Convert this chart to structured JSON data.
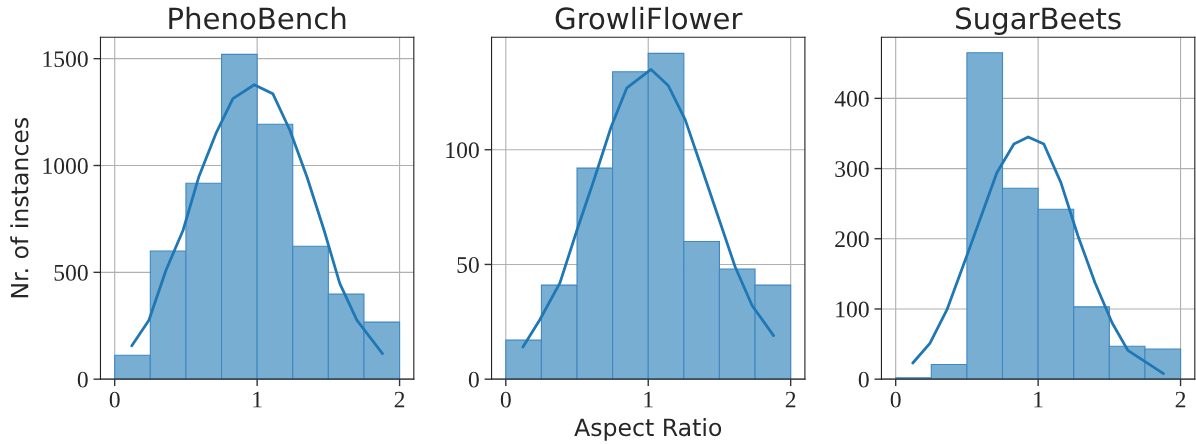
{
  "chart_data": [
    {
      "type": "histogram",
      "title": "PhenoBench",
      "ylabel": "Nr. of instances",
      "bins": [
        0,
        0.25,
        0.5,
        0.75,
        1,
        1.25,
        1.5,
        1.75,
        2
      ],
      "xlim": [
        -0.1,
        2.1
      ],
      "xticks": [
        0,
        1,
        2
      ],
      "ylim": [
        0,
        1600
      ],
      "yticks": [
        0,
        500,
        1000,
        1500
      ],
      "grid": true,
      "series": [
        {
          "type": "histogram",
          "color": "#79aed3",
          "values": [
            112,
            600,
            917,
            1520,
            1193,
            622,
            398,
            267
          ]
        },
        {
          "type": "line",
          "color": "#1f77b4",
          "x": [
            0.12,
            0.24,
            0.36,
            0.48,
            0.59,
            0.71,
            0.83,
            0.98,
            1.11,
            1.23,
            1.35,
            1.47,
            1.58,
            1.7,
            1.88
          ],
          "values": [
            156,
            276,
            510,
            697,
            946,
            1149,
            1313,
            1378,
            1336,
            1165,
            946,
            697,
            448,
            276,
            120
          ]
        }
      ]
    },
    {
      "type": "histogram",
      "title": "GrowliFlower",
      "xlabel": "Aspect Ratio",
      "bins": [
        0,
        0.25,
        0.5,
        0.75,
        1,
        1.25,
        1.5,
        1.75,
        2
      ],
      "xlim": [
        -0.1,
        2.1
      ],
      "xticks": [
        0,
        1,
        2
      ],
      "ylim": [
        0,
        149
      ],
      "yticks": [
        0,
        50,
        100
      ],
      "grid": true,
      "series": [
        {
          "type": "histogram",
          "color": "#79aed3",
          "values": [
            17,
            41,
            92,
            134,
            142,
            60,
            48,
            41
          ]
        },
        {
          "type": "line",
          "color": "#1f77b4",
          "x": [
            0.12,
            0.24,
            0.38,
            0.5,
            0.62,
            0.74,
            0.85,
            1.02,
            1.14,
            1.26,
            1.37,
            1.49,
            1.61,
            1.73,
            1.88
          ],
          "values": [
            14,
            26,
            42,
            65,
            87,
            110,
            127,
            135,
            128,
            113,
            93,
            71,
            49,
            32,
            19
          ]
        }
      ]
    },
    {
      "type": "histogram",
      "title": "SugarBeets",
      "bins": [
        0,
        0.25,
        0.5,
        0.75,
        1,
        1.25,
        1.5,
        1.75,
        2
      ],
      "xlim": [
        -0.1,
        2.1
      ],
      "xticks": [
        0,
        1,
        2
      ],
      "ylim": [
        0,
        487
      ],
      "yticks": [
        0,
        100,
        200,
        300,
        400
      ],
      "grid": true,
      "series": [
        {
          "type": "histogram",
          "color": "#79aed3",
          "values": [
            2,
            21,
            465,
            272,
            242,
            103,
            47,
            43
          ]
        },
        {
          "type": "line",
          "color": "#1f77b4",
          "x": [
            0.12,
            0.24,
            0.36,
            0.48,
            0.6,
            0.71,
            0.83,
            0.93,
            1.04,
            1.16,
            1.28,
            1.4,
            1.52,
            1.63,
            1.88
          ],
          "values": [
            23,
            51,
            99,
            165,
            232,
            294,
            335,
            345,
            335,
            280,
            204,
            137,
            80,
            41,
            8
          ]
        }
      ]
    }
  ]
}
